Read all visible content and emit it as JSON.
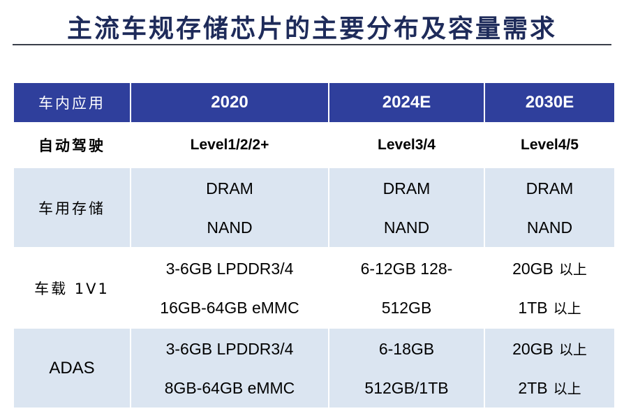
{
  "title": "主流车规存储芯片的主要分布及容量需求",
  "header": [
    "车内应用",
    "2020",
    "2024E",
    "2030E"
  ],
  "rows": [
    {
      "label": "自动驾驶",
      "cells": [
        [
          "Level1/2/2+"
        ],
        [
          "Level3/4"
        ],
        [
          "Level4/5"
        ]
      ]
    },
    {
      "label": "车用存储",
      "cells": [
        [
          "DRAM",
          "NAND"
        ],
        [
          "DRAM",
          "NAND"
        ],
        [
          "DRAM",
          "NAND"
        ]
      ]
    },
    {
      "label": "车载 1V1",
      "cells": [
        [
          "3-6GB LPDDR3/4",
          "16GB-64GB eMMC"
        ],
        [
          "6-12GB 128-",
          "512GB"
        ],
        [
          "20GB",
          "1TB"
        ]
      ]
    },
    {
      "label": "ADAS",
      "cells": [
        [
          "3-6GB LPDDR3/4",
          "8GB-64GB eMMC"
        ],
        [
          "6-18GB",
          "512GB/1TB"
        ],
        [
          "20GB",
          "2TB"
        ]
      ]
    }
  ],
  "suffix": "以上",
  "colors": {
    "header_bg": "#2f3f9c",
    "shade_bg": "#dbe5f1",
    "title": "#1e2b5a"
  }
}
